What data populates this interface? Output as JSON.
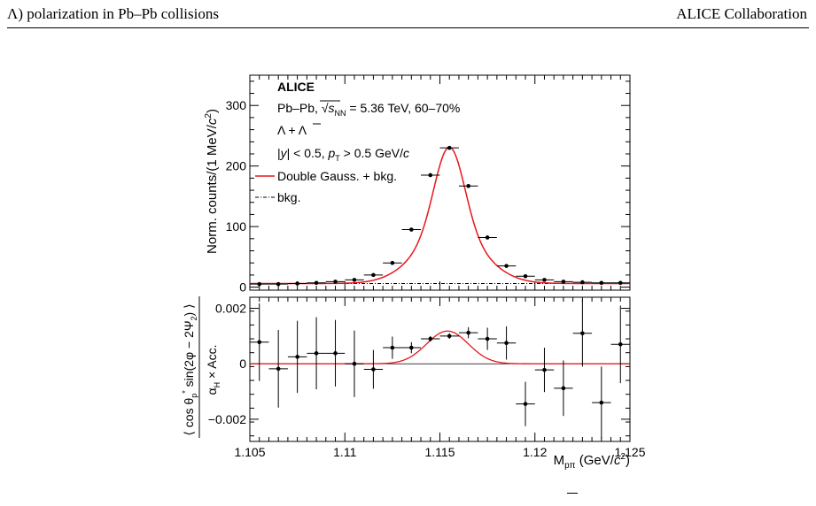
{
  "header": {
    "left": "Λ) polarization in Pb–Pb collisions",
    "right": "ALICE Collaboration"
  },
  "legend": {
    "experiment": "ALICE",
    "system_prefix": "Pb–Pb, ",
    "energy_suffix": " = 5.36 TeV, 60–70%",
    "particles": "Λ + Λ",
    "cuts_prefix": "|",
    "cuts_y": "y",
    "cuts_mid": "| < 0.5, ",
    "cuts_p": "p",
    "cuts_T": "T",
    "cuts_suffix": " > 0.5 GeV/",
    "cuts_c": "c",
    "fit_label": "Double Gauss. + bkg.",
    "bkg_label": "bkg."
  },
  "colors": {
    "fit": "#e8161b",
    "points": "#000000",
    "bkg": "#000000"
  },
  "chart_data": [
    {
      "type": "scatter",
      "ylabel": "Norm. counts/(1 MeV/c²)",
      "xlim": [
        1.105,
        1.125
      ],
      "ylim": [
        -5,
        350
      ],
      "yticks": [
        0,
        100,
        200,
        300
      ],
      "points": {
        "x": [
          1.1055,
          1.1065,
          1.1075,
          1.1085,
          1.1095,
          1.1105,
          1.1115,
          1.1125,
          1.1135,
          1.1145,
          1.1155,
          1.1165,
          1.1175,
          1.1185,
          1.1195,
          1.1205,
          1.1215,
          1.1225,
          1.1235,
          1.1245
        ],
        "y": [
          5,
          5,
          6,
          7,
          9,
          12,
          20,
          40,
          95,
          185,
          230,
          167,
          82,
          35,
          18,
          12,
          9,
          8,
          7,
          7
        ],
        "xerr": 0.0005
      },
      "fit": {
        "name": "Double Gauss. + bkg.",
        "mean": 1.1155,
        "sigma1": 0.00078,
        "amp1": 140,
        "sigma2": 0.0017,
        "amp2": 85,
        "bkg": 6
      },
      "background": {
        "name": "bkg.",
        "y": 6
      }
    },
    {
      "type": "scatter",
      "ylabel": "⟨cos θp* sin(2φ − 2Ψ2)⟩ / αH × Acc.",
      "xlabel": "Mpπ (GeV/c²)",
      "xlim": [
        1.105,
        1.125
      ],
      "ylim": [
        -0.0028,
        0.0024
      ],
      "xticks": [
        1.105,
        1.11,
        1.115,
        1.12,
        1.125
      ],
      "xtick_labels": [
        "1.105",
        "1.11",
        "1.115",
        "1.12",
        "1.125"
      ],
      "yticks": [
        -0.002,
        0,
        0.002
      ],
      "ytick_labels": [
        "−0.002",
        "0",
        "0.002"
      ],
      "points": {
        "x": [
          1.1055,
          1.1065,
          1.1075,
          1.1085,
          1.1095,
          1.1105,
          1.1115,
          1.1125,
          1.1135,
          1.1145,
          1.1155,
          1.1165,
          1.1175,
          1.1185,
          1.1195,
          1.1205,
          1.1215,
          1.1225,
          1.1235,
          1.1245
        ],
        "y": [
          0.00078,
          -0.00018,
          0.00025,
          0.00038,
          0.00038,
          0.0,
          -0.0002,
          0.00058,
          0.00058,
          0.0009,
          0.001,
          0.00112,
          0.0009,
          0.00075,
          -0.00145,
          -0.00022,
          -0.00088,
          0.0011,
          -0.0014,
          0.0007
        ],
        "yerr": [
          0.0014,
          0.0014,
          0.0013,
          0.0013,
          0.0012,
          0.0012,
          0.0007,
          0.0004,
          0.0002,
          0.0001,
          0.0001,
          0.0002,
          0.0004,
          0.0006,
          0.0008,
          0.0008,
          0.001,
          0.0012,
          0.0013,
          0.0014
        ],
        "xerr": 0.0005
      },
      "fit": {
        "mean": 1.1154,
        "sigma": 0.0011,
        "amp": 0.00118
      }
    }
  ]
}
